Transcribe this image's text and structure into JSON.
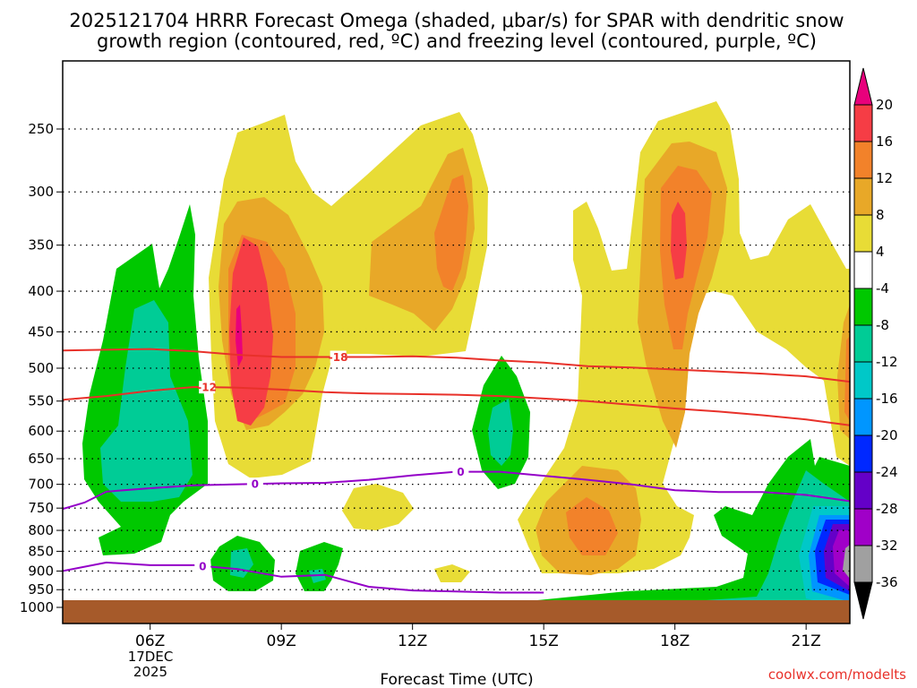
{
  "chart_data": {
    "type": "contour",
    "title_line1": "2025121704 HRRR Forecast Omega (shaded, μbar/s) for SPAR with dendritic snow",
    "title_line2": "growth region (contoured, red, ºC) and freezing level (contoured, purple, ºC)",
    "xlabel": "Forecast Time (UTC)",
    "credit": "coolwx.com/modelts",
    "x_ticks": [
      "06Z",
      "09Z",
      "12Z",
      "15Z",
      "18Z",
      "21Z"
    ],
    "x_tick_hours": [
      6,
      9,
      12,
      15,
      18,
      21
    ],
    "date_label": [
      "17DEC",
      "2025"
    ],
    "xlim_hours": [
      4,
      22
    ],
    "y_ticks": [
      "250",
      "300",
      "350",
      "400",
      "450",
      "500",
      "550",
      "600",
      "650",
      "700",
      "750",
      "800",
      "850",
      "900",
      "950",
      "1000"
    ],
    "y_tick_values": [
      250,
      300,
      350,
      400,
      450,
      500,
      550,
      600,
      650,
      700,
      750,
      800,
      850,
      900,
      950,
      1000
    ],
    "ylim_hPa": [
      200,
      1020
    ],
    "colorbar": {
      "labels": [
        "20",
        "16",
        "12",
        "8",
        "4",
        "-4",
        "-8",
        "-12",
        "-16",
        "-20",
        "-24",
        "-28",
        "-32",
        "-36"
      ],
      "bins": [
        {
          "name": ">20",
          "color": "#e8007c"
        },
        {
          "name": "16 to 20",
          "color": "#f63d45"
        },
        {
          "name": "12 to 16",
          "color": "#f2822a"
        },
        {
          "name": "8 to 12",
          "color": "#e8a828"
        },
        {
          "name": "4 to 8",
          "color": "#e8dc36"
        },
        {
          "name": "-4 to 4",
          "color": "#ffffff"
        },
        {
          "name": "-8 to -4",
          "color": "#00c800"
        },
        {
          "name": "-12 to -8",
          "color": "#00cc96"
        },
        {
          "name": "-16 to -12",
          "color": "#00c8c8"
        },
        {
          "name": "-20 to -16",
          "color": "#0096ff"
        },
        {
          "name": "-24 to -20",
          "color": "#0028ff"
        },
        {
          "name": "-28 to -24",
          "color": "#6400c8"
        },
        {
          "name": "-32 to -28",
          "color": "#a000c8"
        },
        {
          "name": "-36 to -32",
          "color": "#a0a0a0"
        },
        {
          "name": "<-36",
          "color": "#000000"
        }
      ]
    },
    "contours": [
      {
        "name": "-18C isotherm",
        "label": "-18",
        "color": "#e8312a",
        "hours": [
          4.0,
          5.0,
          6.0,
          7.0,
          8.0,
          9.0,
          10.0,
          11.0,
          12.0,
          13.0,
          14.0,
          15.0,
          16.0,
          17.0,
          18.0,
          19.0,
          20.0,
          21.0,
          22.0
        ],
        "pressures": [
          475,
          474,
          473,
          476,
          481,
          484,
          484,
          484,
          483,
          485,
          489,
          492,
          497,
          499,
          502,
          505,
          508,
          512,
          520
        ]
      },
      {
        "name": "-12C isotherm",
        "label": "-12",
        "color": "#e8312a",
        "hours": [
          4.0,
          5.0,
          6.0,
          7.0,
          8.0,
          9.0,
          10.0,
          11.0,
          12.0,
          13.0,
          14.0,
          15.0,
          16.0,
          17.0,
          18.0,
          19.0,
          20.0,
          21.0,
          22.0
        ],
        "pressures": [
          548,
          542,
          534,
          528,
          529,
          532,
          536,
          538,
          539,
          540,
          542,
          546,
          550,
          556,
          562,
          567,
          573,
          580,
          590
        ]
      },
      {
        "name": "0C freezing level (upper)",
        "label": "0",
        "color": "#9400c8",
        "hours": [
          4.0,
          4.5,
          5.0,
          6.0,
          7.0,
          8.0,
          9.0,
          10.0,
          11.0,
          12.0,
          13.0,
          14.0,
          15.0,
          16.0,
          17.0,
          18.0,
          19.0,
          20.0,
          21.0,
          22.0
        ],
        "pressures": [
          752,
          738,
          715,
          708,
          702,
          700,
          698,
          697,
          691,
          682,
          675,
          675,
          683,
          691,
          700,
          712,
          716,
          716,
          722,
          735
        ]
      },
      {
        "name": "0C freezing level (lower)",
        "label": "0",
        "color": "#9400c8",
        "hours": [
          4.0,
          5.0,
          6.0,
          7.0,
          8.0,
          9.0,
          10.0,
          11.0,
          12.0,
          13.0,
          14.0,
          15.0
        ],
        "pressures": [
          900,
          878,
          885,
          885,
          895,
          915,
          910,
          942,
          952,
          955,
          958,
          958
        ]
      }
    ]
  }
}
